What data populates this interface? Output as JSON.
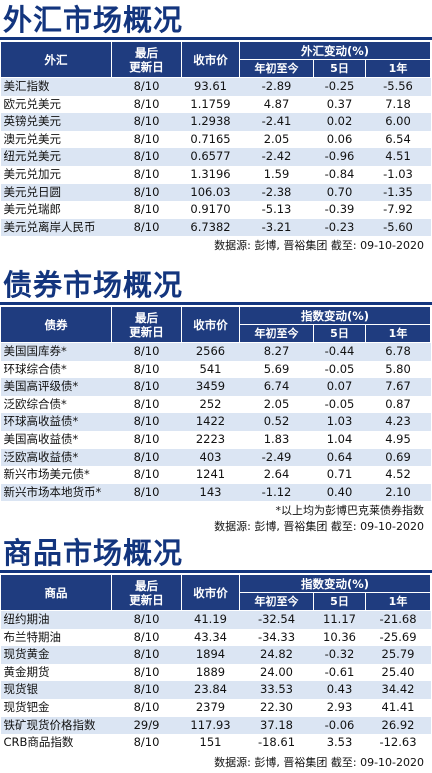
{
  "sections": [
    {
      "title": "外汇市场概况",
      "headers": {
        "name": "外汇",
        "date": [
          "最后",
          "更新日"
        ],
        "close": "收市价",
        "group": "外汇变动(%)",
        "ytd": "年初至今",
        "d5": "5日",
        "y1": "1年"
      },
      "rows": [
        [
          "美汇指数",
          "8/10",
          "93.61",
          "-2.89",
          "-0.25",
          "-5.56"
        ],
        [
          "欧元兑美元",
          "8/10",
          "1.1759",
          "4.87",
          "0.37",
          "7.18"
        ],
        [
          "英镑兑美元",
          "8/10",
          "1.2938",
          "-2.41",
          "0.02",
          "6.00"
        ],
        [
          "澳元兑美元",
          "8/10",
          "0.7165",
          "2.05",
          "0.06",
          "6.54"
        ],
        [
          "纽元兑美元",
          "8/10",
          "0.6577",
          "-2.42",
          "-0.96",
          "4.51"
        ],
        [
          "美元兑加元",
          "8/10",
          "1.3196",
          "1.59",
          "-0.84",
          "-1.03"
        ],
        [
          "美元兑日圆",
          "8/10",
          "106.03",
          "-2.38",
          "0.70",
          "-1.35"
        ],
        [
          "美元兑瑞郎",
          "8/10",
          "0.9170",
          "-5.13",
          "-0.39",
          "-7.92"
        ],
        [
          "美元兑离岸人民币",
          "8/10",
          "6.7382",
          "-3.21",
          "-0.23",
          "-5.60"
        ]
      ],
      "source": "数据源: 彭博, 晋裕集团 截至: 09-10-2020"
    },
    {
      "title": "债券市场概况",
      "headers": {
        "name": "债券",
        "date": [
          "最后",
          "更新日"
        ],
        "close": "收市价",
        "group": "指数变动(%)",
        "ytd": "年初至今",
        "d5": "5日",
        "y1": "1年"
      },
      "rows": [
        [
          "美国国库券*",
          "8/10",
          "2566",
          "8.27",
          "-0.44",
          "6.78"
        ],
        [
          "环球综合债*",
          "8/10",
          "541",
          "5.69",
          "-0.05",
          "5.80"
        ],
        [
          "美国高评级债*",
          "8/10",
          "3459",
          "6.74",
          "0.07",
          "7.67"
        ],
        [
          "泛欧综合债*",
          "8/10",
          "252",
          "2.05",
          "-0.05",
          "0.87"
        ],
        [
          "环球高收益债*",
          "8/10",
          "1422",
          "0.52",
          "1.03",
          "4.23"
        ],
        [
          "美国高收益债*",
          "8/10",
          "2223",
          "1.83",
          "1.04",
          "4.95"
        ],
        [
          "泛欧高收益债*",
          "8/10",
          "403",
          "-2.49",
          "0.64",
          "0.69"
        ],
        [
          "新兴市场美元债*",
          "8/10",
          "1241",
          "2.64",
          "0.71",
          "4.52"
        ],
        [
          "新兴市场本地货币*",
          "8/10",
          "143",
          "-1.12",
          "0.40",
          "2.10"
        ]
      ],
      "footnote": "*以上均为彭博巴克莱债券指数",
      "source": "数据源: 彭博, 晋裕集团 截至: 09-10-2020"
    },
    {
      "title": "商品市场概况",
      "headers": {
        "name": "商品",
        "date": [
          "最后",
          "更新日"
        ],
        "close": "收市价",
        "group": "指数变动(%)",
        "ytd": "年初至今",
        "d5": "5日",
        "y1": "1年"
      },
      "rows": [
        [
          "纽约期油",
          "8/10",
          "41.19",
          "-32.54",
          "11.17",
          "-21.68"
        ],
        [
          "布兰特期油",
          "8/10",
          "43.34",
          "-34.33",
          "10.36",
          "-25.69"
        ],
        [
          "现货黄金",
          "8/10",
          "1894",
          "24.82",
          "-0.32",
          "25.79"
        ],
        [
          "黄金期货",
          "8/10",
          "1889",
          "24.00",
          "-0.61",
          "25.40"
        ],
        [
          "现货银",
          "8/10",
          "23.84",
          "33.53",
          "0.43",
          "34.42"
        ],
        [
          "现货钯金",
          "8/10",
          "2379",
          "22.30",
          "2.93",
          "41.41"
        ],
        [
          "铁矿现货价格指数",
          "29/9",
          "117.93",
          "37.18",
          "-0.06",
          "26.92"
        ],
        [
          "CRB商品指数",
          "8/10",
          "151",
          "-18.61",
          "3.53",
          "-12.63"
        ]
      ],
      "source": "数据源: 彭博, 晋裕集团 截至: 09-10-2020"
    }
  ]
}
